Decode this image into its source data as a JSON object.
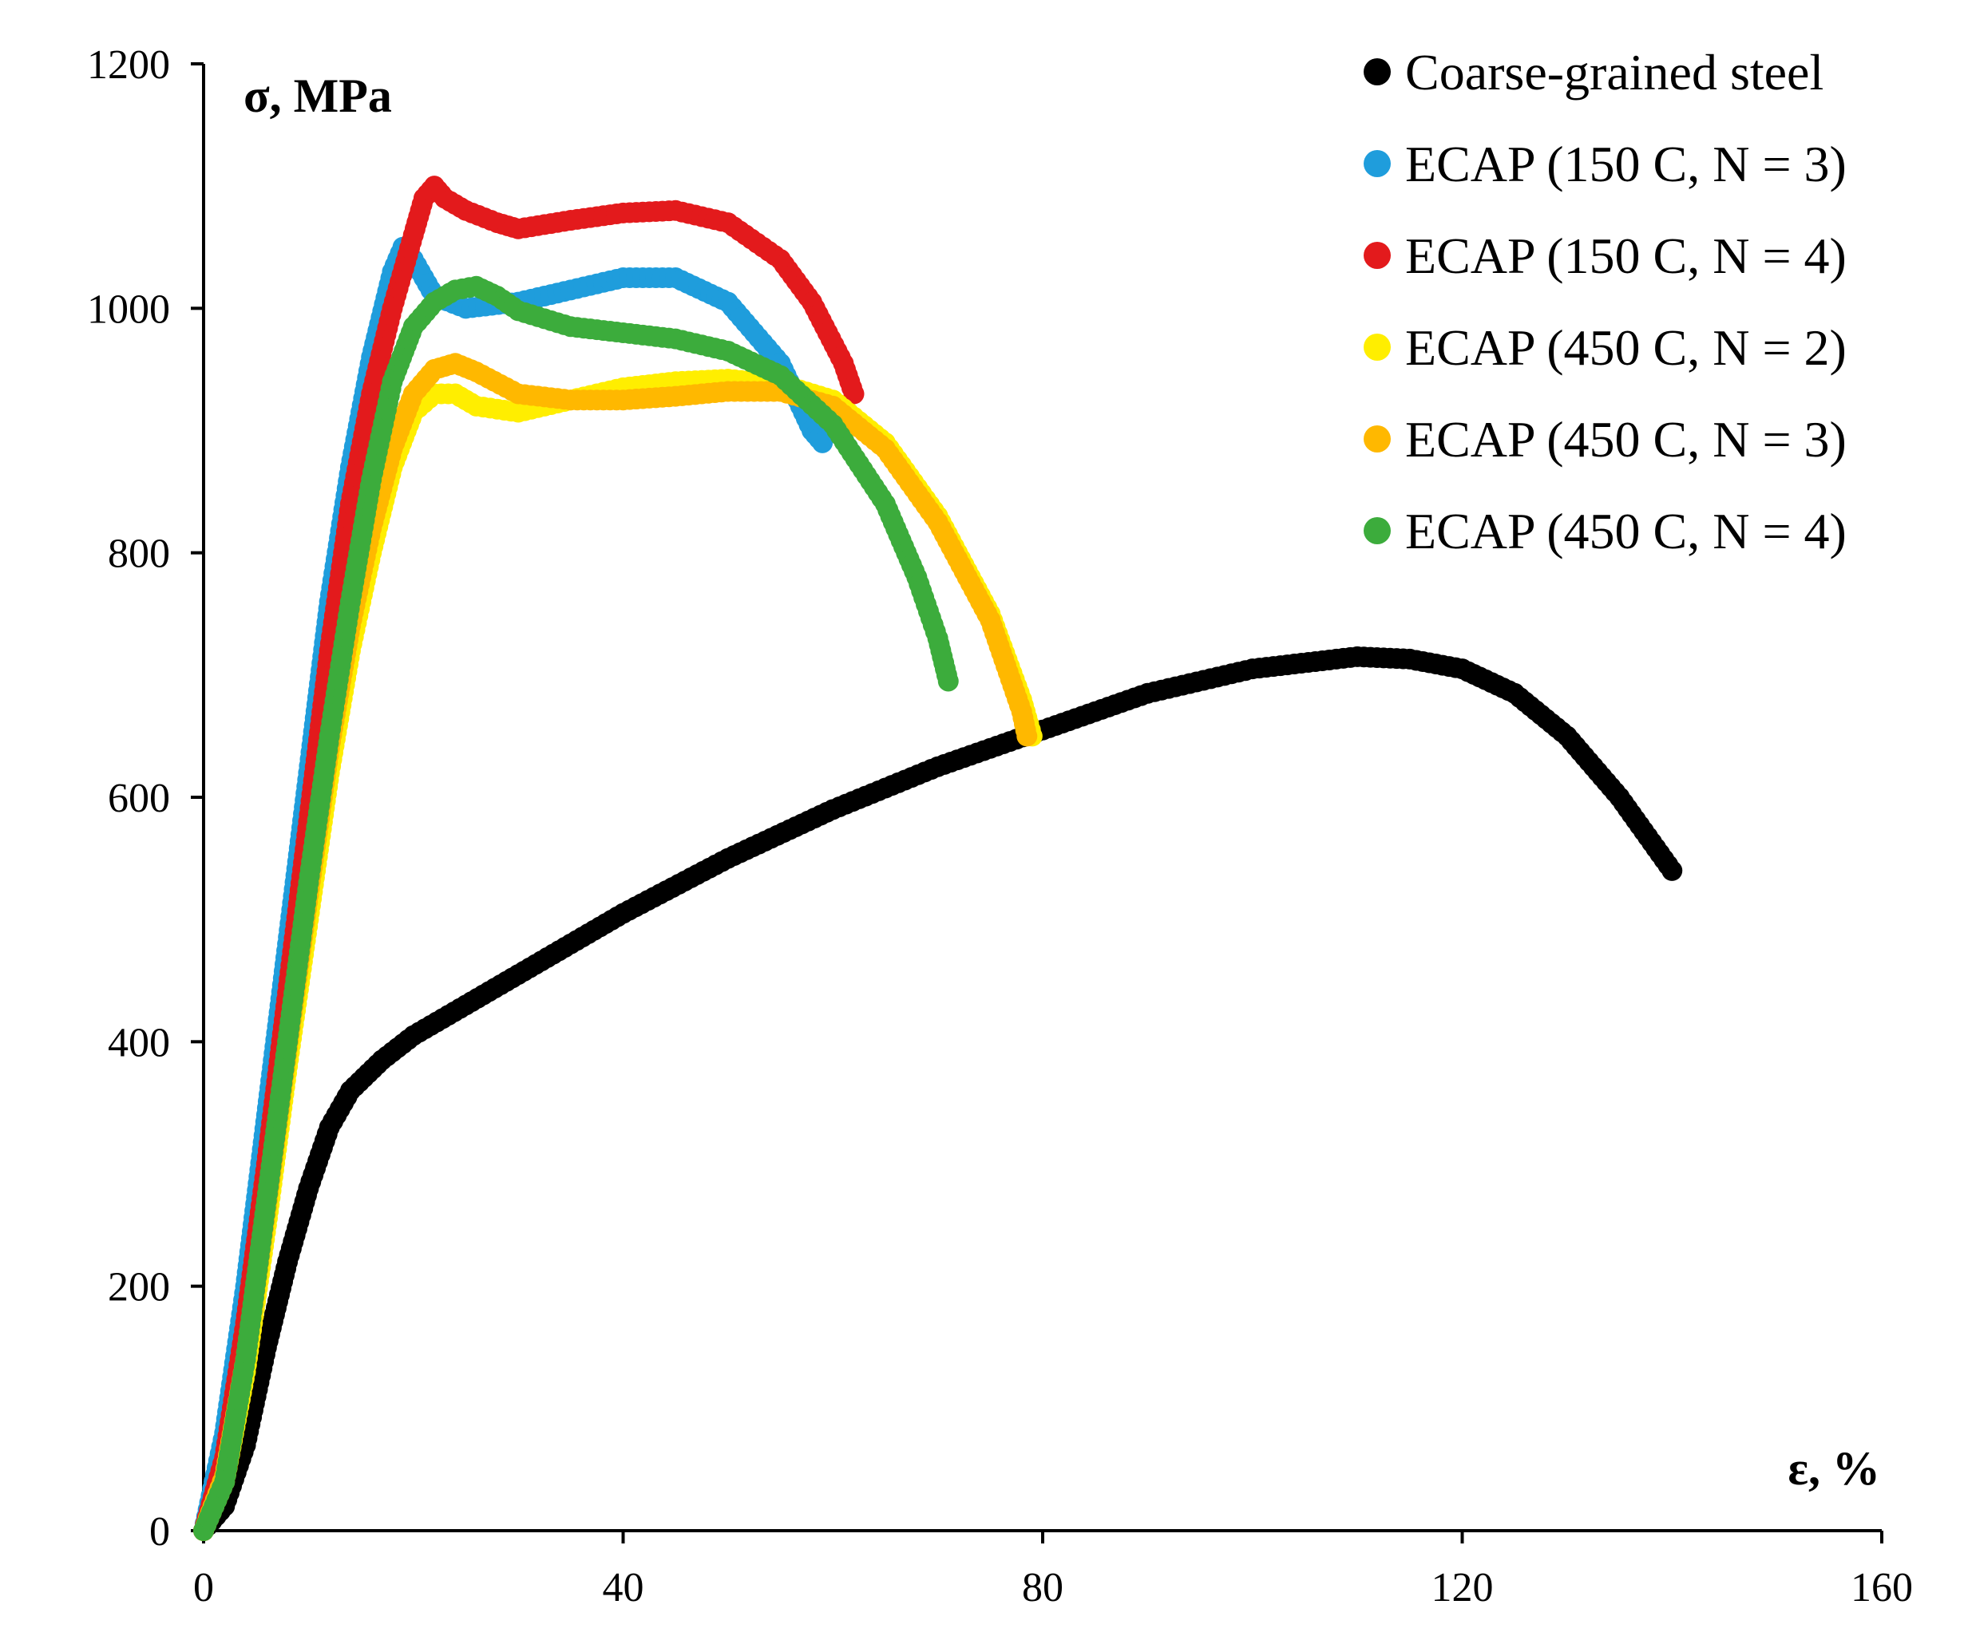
{
  "chart_data": {
    "type": "scatter",
    "xlabel": "ε, %",
    "ylabel": "σ, MPa",
    "xlim": [
      0,
      160
    ],
    "ylim": [
      0,
      1200
    ],
    "x_ticks": [
      0,
      40,
      80,
      120,
      160
    ],
    "y_ticks": [
      0,
      200,
      400,
      600,
      800,
      1000,
      1200
    ],
    "grid": false,
    "legend_position": "top-right",
    "series": [
      {
        "name": "Coarse-grained steel",
        "color": "#000000",
        "points": [
          [
            0,
            0
          ],
          [
            2,
            20
          ],
          [
            4,
            70
          ],
          [
            6,
            150
          ],
          [
            8,
            220
          ],
          [
            10,
            280
          ],
          [
            12,
            330
          ],
          [
            14,
            360
          ],
          [
            17,
            385
          ],
          [
            20,
            405
          ],
          [
            25,
            430
          ],
          [
            30,
            455
          ],
          [
            35,
            480
          ],
          [
            40,
            505
          ],
          [
            50,
            550
          ],
          [
            60,
            590
          ],
          [
            70,
            625
          ],
          [
            80,
            655
          ],
          [
            90,
            685
          ],
          [
            100,
            705
          ],
          [
            110,
            715
          ],
          [
            115,
            713
          ],
          [
            120,
            705
          ],
          [
            125,
            685
          ],
          [
            130,
            650
          ],
          [
            135,
            600
          ],
          [
            140,
            540
          ]
        ]
      },
      {
        "name": "ECAP (150 C, N = 3)",
        "color": "#1f9ddc",
        "points": [
          [
            0,
            0
          ],
          [
            2,
            80
          ],
          [
            4,
            200
          ],
          [
            6,
            340
          ],
          [
            8,
            480
          ],
          [
            10,
            620
          ],
          [
            12,
            760
          ],
          [
            14,
            870
          ],
          [
            16,
            960
          ],
          [
            18,
            1030
          ],
          [
            19,
            1050
          ],
          [
            20,
            1040
          ],
          [
            22,
            1010
          ],
          [
            25,
            1000
          ],
          [
            30,
            1005
          ],
          [
            35,
            1015
          ],
          [
            40,
            1025
          ],
          [
            45,
            1025
          ],
          [
            50,
            1005
          ],
          [
            55,
            955
          ],
          [
            58,
            900
          ],
          [
            59,
            890
          ]
        ]
      },
      {
        "name": "ECAP (150 C, N = 4)",
        "color": "#e31a1c",
        "points": [
          [
            0,
            0
          ],
          [
            2,
            60
          ],
          [
            4,
            170
          ],
          [
            6,
            300
          ],
          [
            8,
            440
          ],
          [
            10,
            580
          ],
          [
            12,
            720
          ],
          [
            14,
            840
          ],
          [
            16,
            930
          ],
          [
            18,
            1000
          ],
          [
            20,
            1060
          ],
          [
            21,
            1090
          ],
          [
            22,
            1100
          ],
          [
            23,
            1090
          ],
          [
            25,
            1080
          ],
          [
            28,
            1070
          ],
          [
            30,
            1065
          ],
          [
            35,
            1072
          ],
          [
            40,
            1078
          ],
          [
            45,
            1080
          ],
          [
            50,
            1070
          ],
          [
            55,
            1040
          ],
          [
            58,
            1005
          ],
          [
            61,
            955
          ],
          [
            62,
            930
          ]
        ]
      },
      {
        "name": "ECAP (450 C, N = 2)",
        "color": "#ffee00",
        "points": [
          [
            0,
            0
          ],
          [
            2,
            40
          ],
          [
            4,
            130
          ],
          [
            6,
            250
          ],
          [
            8,
            380
          ],
          [
            10,
            500
          ],
          [
            12,
            620
          ],
          [
            14,
            720
          ],
          [
            16,
            800
          ],
          [
            18,
            870
          ],
          [
            20,
            915
          ],
          [
            22,
            930
          ],
          [
            24,
            930
          ],
          [
            26,
            920
          ],
          [
            30,
            915
          ],
          [
            35,
            925
          ],
          [
            40,
            935
          ],
          [
            45,
            940
          ],
          [
            50,
            942
          ],
          [
            55,
            938
          ],
          [
            60,
            925
          ],
          [
            65,
            890
          ],
          [
            70,
            830
          ],
          [
            75,
            750
          ],
          [
            78,
            680
          ],
          [
            79,
            650
          ]
        ]
      },
      {
        "name": "ECAP (450 C, N = 3)",
        "color": "#ffb800",
        "points": [
          [
            0,
            0
          ],
          [
            2,
            45
          ],
          [
            4,
            140
          ],
          [
            6,
            265
          ],
          [
            8,
            395
          ],
          [
            10,
            520
          ],
          [
            12,
            640
          ],
          [
            14,
            740
          ],
          [
            16,
            820
          ],
          [
            18,
            885
          ],
          [
            20,
            930
          ],
          [
            22,
            950
          ],
          [
            24,
            955
          ],
          [
            26,
            948
          ],
          [
            30,
            930
          ],
          [
            35,
            925
          ],
          [
            40,
            925
          ],
          [
            45,
            928
          ],
          [
            50,
            932
          ],
          [
            55,
            932
          ],
          [
            60,
            920
          ],
          [
            65,
            885
          ],
          [
            70,
            825
          ],
          [
            75,
            745
          ],
          [
            78,
            670
          ],
          [
            78.5,
            650
          ]
        ]
      },
      {
        "name": "ECAP (450 C, N = 4)",
        "color": "#3cac3c",
        "points": [
          [
            0,
            0
          ],
          [
            2,
            40
          ],
          [
            4,
            140
          ],
          [
            6,
            270
          ],
          [
            8,
            400
          ],
          [
            10,
            530
          ],
          [
            12,
            650
          ],
          [
            14,
            760
          ],
          [
            16,
            860
          ],
          [
            18,
            940
          ],
          [
            20,
            985
          ],
          [
            22,
            1005
          ],
          [
            24,
            1015
          ],
          [
            26,
            1018
          ],
          [
            28,
            1010
          ],
          [
            30,
            998
          ],
          [
            35,
            985
          ],
          [
            40,
            980
          ],
          [
            45,
            975
          ],
          [
            50,
            965
          ],
          [
            55,
            945
          ],
          [
            60,
            905
          ],
          [
            65,
            840
          ],
          [
            68,
            780
          ],
          [
            70,
            730
          ],
          [
            71,
            695
          ]
        ]
      }
    ]
  }
}
